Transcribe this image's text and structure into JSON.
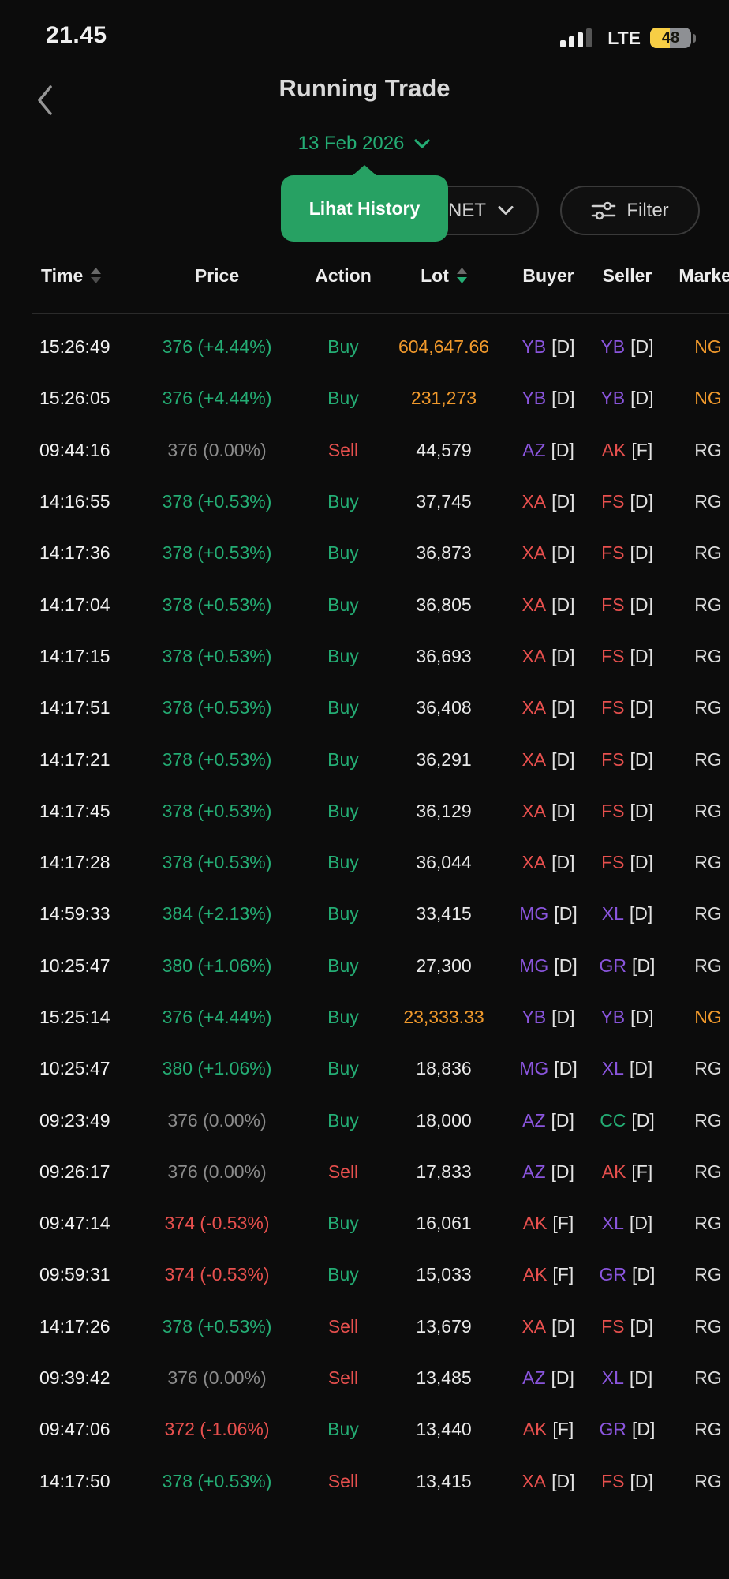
{
  "status_bar": {
    "time": "21.45",
    "network": "LTE",
    "battery_percent": "48"
  },
  "header": {
    "title": "Running Trade",
    "date": "13 Feb 2026",
    "tooltip_label": "Lihat History",
    "net_label": "NET",
    "filter_label": "Filter"
  },
  "table": {
    "columns": [
      {
        "key": "time",
        "label": "Time",
        "align": "left",
        "sort": "unsorted"
      },
      {
        "key": "price",
        "label": "Price",
        "align": "center",
        "sort": null
      },
      {
        "key": "action",
        "label": "Action",
        "align": "center",
        "sort": null
      },
      {
        "key": "lot",
        "label": "Lot",
        "align": "center",
        "sort": "desc"
      },
      {
        "key": "buyer",
        "label": "Buyer",
        "align": "center",
        "sort": null
      },
      {
        "key": "seller",
        "label": "Seller",
        "align": "center",
        "sort": null
      },
      {
        "key": "market",
        "label": "Market",
        "align": "center",
        "sort": null
      }
    ],
    "rows": [
      {
        "time": "15:26:49",
        "price": "376 (+4.44%)",
        "price_state": "up",
        "action": "Buy",
        "lot": "604,647.66",
        "lot_style": "orange",
        "buyer": {
          "code": "YB",
          "color": "purple",
          "suffix": "[D]"
        },
        "seller": {
          "code": "YB",
          "color": "purple",
          "suffix": "[D]"
        },
        "market": "NG",
        "market_style": "orange"
      },
      {
        "time": "15:26:05",
        "price": "376 (+4.44%)",
        "price_state": "up",
        "action": "Buy",
        "lot": "231,273",
        "lot_style": "orange",
        "buyer": {
          "code": "YB",
          "color": "purple",
          "suffix": "[D]"
        },
        "seller": {
          "code": "YB",
          "color": "purple",
          "suffix": "[D]"
        },
        "market": "NG",
        "market_style": "orange"
      },
      {
        "time": "09:44:16",
        "price": "376 (0.00%)",
        "price_state": "flat",
        "action": "Sell",
        "lot": "44,579",
        "lot_style": "default",
        "buyer": {
          "code": "AZ",
          "color": "purple",
          "suffix": "[D]"
        },
        "seller": {
          "code": "AK",
          "color": "red",
          "suffix": "[F]"
        },
        "market": "RG",
        "market_style": "default"
      },
      {
        "time": "14:16:55",
        "price": "378 (+0.53%)",
        "price_state": "up",
        "action": "Buy",
        "lot": "37,745",
        "lot_style": "default",
        "buyer": {
          "code": "XA",
          "color": "red",
          "suffix": "[D]"
        },
        "seller": {
          "code": "FS",
          "color": "red",
          "suffix": "[D]"
        },
        "market": "RG",
        "market_style": "default"
      },
      {
        "time": "14:17:36",
        "price": "378 (+0.53%)",
        "price_state": "up",
        "action": "Buy",
        "lot": "36,873",
        "lot_style": "default",
        "buyer": {
          "code": "XA",
          "color": "red",
          "suffix": "[D]"
        },
        "seller": {
          "code": "FS",
          "color": "red",
          "suffix": "[D]"
        },
        "market": "RG",
        "market_style": "default"
      },
      {
        "time": "14:17:04",
        "price": "378 (+0.53%)",
        "price_state": "up",
        "action": "Buy",
        "lot": "36,805",
        "lot_style": "default",
        "buyer": {
          "code": "XA",
          "color": "red",
          "suffix": "[D]"
        },
        "seller": {
          "code": "FS",
          "color": "red",
          "suffix": "[D]"
        },
        "market": "RG",
        "market_style": "default"
      },
      {
        "time": "14:17:15",
        "price": "378 (+0.53%)",
        "price_state": "up",
        "action": "Buy",
        "lot": "36,693",
        "lot_style": "default",
        "buyer": {
          "code": "XA",
          "color": "red",
          "suffix": "[D]"
        },
        "seller": {
          "code": "FS",
          "color": "red",
          "suffix": "[D]"
        },
        "market": "RG",
        "market_style": "default"
      },
      {
        "time": "14:17:51",
        "price": "378 (+0.53%)",
        "price_state": "up",
        "action": "Buy",
        "lot": "36,408",
        "lot_style": "default",
        "buyer": {
          "code": "XA",
          "color": "red",
          "suffix": "[D]"
        },
        "seller": {
          "code": "FS",
          "color": "red",
          "suffix": "[D]"
        },
        "market": "RG",
        "market_style": "default"
      },
      {
        "time": "14:17:21",
        "price": "378 (+0.53%)",
        "price_state": "up",
        "action": "Buy",
        "lot": "36,291",
        "lot_style": "default",
        "buyer": {
          "code": "XA",
          "color": "red",
          "suffix": "[D]"
        },
        "seller": {
          "code": "FS",
          "color": "red",
          "suffix": "[D]"
        },
        "market": "RG",
        "market_style": "default"
      },
      {
        "time": "14:17:45",
        "price": "378 (+0.53%)",
        "price_state": "up",
        "action": "Buy",
        "lot": "36,129",
        "lot_style": "default",
        "buyer": {
          "code": "XA",
          "color": "red",
          "suffix": "[D]"
        },
        "seller": {
          "code": "FS",
          "color": "red",
          "suffix": "[D]"
        },
        "market": "RG",
        "market_style": "default"
      },
      {
        "time": "14:17:28",
        "price": "378 (+0.53%)",
        "price_state": "up",
        "action": "Buy",
        "lot": "36,044",
        "lot_style": "default",
        "buyer": {
          "code": "XA",
          "color": "red",
          "suffix": "[D]"
        },
        "seller": {
          "code": "FS",
          "color": "red",
          "suffix": "[D]"
        },
        "market": "RG",
        "market_style": "default"
      },
      {
        "time": "14:59:33",
        "price": "384 (+2.13%)",
        "price_state": "up",
        "action": "Buy",
        "lot": "33,415",
        "lot_style": "default",
        "buyer": {
          "code": "MG",
          "color": "purple",
          "suffix": "[D]"
        },
        "seller": {
          "code": "XL",
          "color": "purple",
          "suffix": "[D]"
        },
        "market": "RG",
        "market_style": "default"
      },
      {
        "time": "10:25:47",
        "price": "380 (+1.06%)",
        "price_state": "up",
        "action": "Buy",
        "lot": "27,300",
        "lot_style": "default",
        "buyer": {
          "code": "MG",
          "color": "purple",
          "suffix": "[D]"
        },
        "seller": {
          "code": "GR",
          "color": "purple",
          "suffix": "[D]"
        },
        "market": "RG",
        "market_style": "default"
      },
      {
        "time": "15:25:14",
        "price": "376 (+4.44%)",
        "price_state": "up",
        "action": "Buy",
        "lot": "23,333.33",
        "lot_style": "orange",
        "buyer": {
          "code": "YB",
          "color": "purple",
          "suffix": "[D]"
        },
        "seller": {
          "code": "YB",
          "color": "purple",
          "suffix": "[D]"
        },
        "market": "NG",
        "market_style": "orange"
      },
      {
        "time": "10:25:47",
        "price": "380 (+1.06%)",
        "price_state": "up",
        "action": "Buy",
        "lot": "18,836",
        "lot_style": "default",
        "buyer": {
          "code": "MG",
          "color": "purple",
          "suffix": "[D]"
        },
        "seller": {
          "code": "XL",
          "color": "purple",
          "suffix": "[D]"
        },
        "market": "RG",
        "market_style": "default"
      },
      {
        "time": "09:23:49",
        "price": "376 (0.00%)",
        "price_state": "flat",
        "action": "Buy",
        "lot": "18,000",
        "lot_style": "default",
        "buyer": {
          "code": "AZ",
          "color": "purple",
          "suffix": "[D]"
        },
        "seller": {
          "code": "CC",
          "color": "green",
          "suffix": "[D]"
        },
        "market": "RG",
        "market_style": "default"
      },
      {
        "time": "09:26:17",
        "price": "376 (0.00%)",
        "price_state": "flat",
        "action": "Sell",
        "lot": "17,833",
        "lot_style": "default",
        "buyer": {
          "code": "AZ",
          "color": "purple",
          "suffix": "[D]"
        },
        "seller": {
          "code": "AK",
          "color": "red",
          "suffix": "[F]"
        },
        "market": "RG",
        "market_style": "default"
      },
      {
        "time": "09:47:14",
        "price": "374 (-0.53%)",
        "price_state": "down",
        "action": "Buy",
        "lot": "16,061",
        "lot_style": "default",
        "buyer": {
          "code": "AK",
          "color": "red",
          "suffix": "[F]"
        },
        "seller": {
          "code": "XL",
          "color": "purple",
          "suffix": "[D]"
        },
        "market": "RG",
        "market_style": "default"
      },
      {
        "time": "09:59:31",
        "price": "374 (-0.53%)",
        "price_state": "down",
        "action": "Buy",
        "lot": "15,033",
        "lot_style": "default",
        "buyer": {
          "code": "AK",
          "color": "red",
          "suffix": "[F]"
        },
        "seller": {
          "code": "GR",
          "color": "purple",
          "suffix": "[D]"
        },
        "market": "RG",
        "market_style": "default"
      },
      {
        "time": "14:17:26",
        "price": "378 (+0.53%)",
        "price_state": "up",
        "action": "Sell",
        "lot": "13,679",
        "lot_style": "default",
        "buyer": {
          "code": "XA",
          "color": "red",
          "suffix": "[D]"
        },
        "seller": {
          "code": "FS",
          "color": "red",
          "suffix": "[D]"
        },
        "market": "RG",
        "market_style": "default"
      },
      {
        "time": "09:39:42",
        "price": "376 (0.00%)",
        "price_state": "flat",
        "action": "Sell",
        "lot": "13,485",
        "lot_style": "default",
        "buyer": {
          "code": "AZ",
          "color": "purple",
          "suffix": "[D]"
        },
        "seller": {
          "code": "XL",
          "color": "purple",
          "suffix": "[D]"
        },
        "market": "RG",
        "market_style": "default"
      },
      {
        "time": "09:47:06",
        "price": "372 (-1.06%)",
        "price_state": "down",
        "action": "Buy",
        "lot": "13,440",
        "lot_style": "default",
        "buyer": {
          "code": "AK",
          "color": "red",
          "suffix": "[F]"
        },
        "seller": {
          "code": "GR",
          "color": "purple",
          "suffix": "[D]"
        },
        "market": "RG",
        "market_style": "default"
      },
      {
        "time": "14:17:50",
        "price": "378 (+0.53%)",
        "price_state": "up",
        "action": "Sell",
        "lot": "13,415",
        "lot_style": "default",
        "buyer": {
          "code": "XA",
          "color": "red",
          "suffix": "[D]"
        },
        "seller": {
          "code": "FS",
          "color": "red",
          "suffix": "[D]"
        },
        "market": "RG",
        "market_style": "default"
      }
    ]
  },
  "colors": {
    "background": "#0c0c0c",
    "text_primary": "#f0f0f0",
    "accent_green": "#24ad74",
    "tooltip_green": "#27a163",
    "red": "#e8504e",
    "orange": "#f0992c",
    "purple": "#8a55dd",
    "flat_gray": "#8c8c8c",
    "pill_border": "#3a3a3a",
    "divider": "#2b2b2b",
    "battery_yellow": "#f7ce45"
  }
}
